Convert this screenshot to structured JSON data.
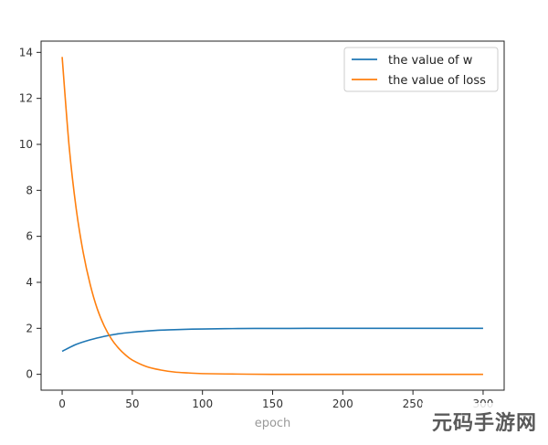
{
  "chart_data": {
    "type": "line",
    "title": "",
    "xlabel": "epoch",
    "ylabel": "",
    "xlim": [
      -15,
      315
    ],
    "ylim": [
      -0.69,
      14.49
    ],
    "xticks": [
      0,
      50,
      100,
      150,
      200,
      250,
      300
    ],
    "yticks": [
      0,
      2,
      4,
      6,
      8,
      10,
      12,
      14
    ],
    "grid": false,
    "legend_position": "top-right",
    "series": [
      {
        "name": "the value of w",
        "color": "#1f77b4",
        "x": [
          0,
          10,
          20,
          30,
          40,
          50,
          60,
          70,
          80,
          90,
          100,
          125,
          150,
          175,
          200,
          250,
          300
        ],
        "y": [
          1.0,
          1.3,
          1.5,
          1.65,
          1.76,
          1.83,
          1.88,
          1.92,
          1.94,
          1.96,
          1.97,
          1.99,
          1.995,
          1.998,
          2.0,
          2.0,
          2.0
        ]
      },
      {
        "name": "the value of loss",
        "color": "#ff7f0e",
        "x": [
          0,
          5,
          10,
          15,
          20,
          25,
          30,
          35,
          40,
          45,
          50,
          60,
          70,
          80,
          90,
          100,
          125,
          150,
          200,
          250,
          300
        ],
        "y": [
          13.8,
          9.9,
          7.2,
          5.3,
          3.9,
          2.85,
          2.1,
          1.55,
          1.15,
          0.85,
          0.62,
          0.34,
          0.19,
          0.1,
          0.06,
          0.03,
          0.01,
          0.0,
          0.0,
          0.0,
          0.0
        ]
      }
    ]
  },
  "watermark": {
    "text": "元码手游网"
  }
}
